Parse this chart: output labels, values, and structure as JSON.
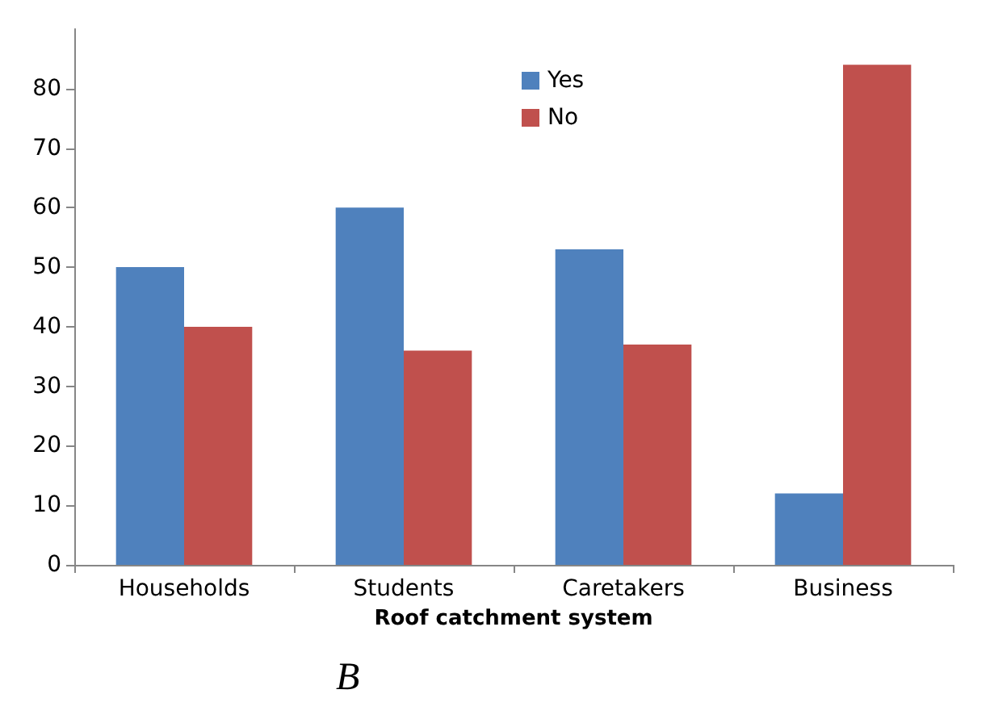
{
  "chart_data": {
    "type": "bar",
    "xlabel": "Roof catchment system",
    "categories": [
      "Households",
      "Students",
      "Caretakers",
      "Business"
    ],
    "series": [
      {
        "name": "Yes",
        "color": "#4f81bd",
        "values": [
          50,
          60,
          53,
          12
        ]
      },
      {
        "name": "No",
        "color": "#c0504d",
        "values": [
          40,
          36,
          37,
          84
        ]
      }
    ],
    "ylim": [
      0,
      90
    ],
    "yticks": [
      0,
      10,
      20,
      30,
      40,
      50,
      60,
      70,
      80
    ],
    "grid": false,
    "legend": "top",
    "annotations": [
      "B"
    ]
  }
}
